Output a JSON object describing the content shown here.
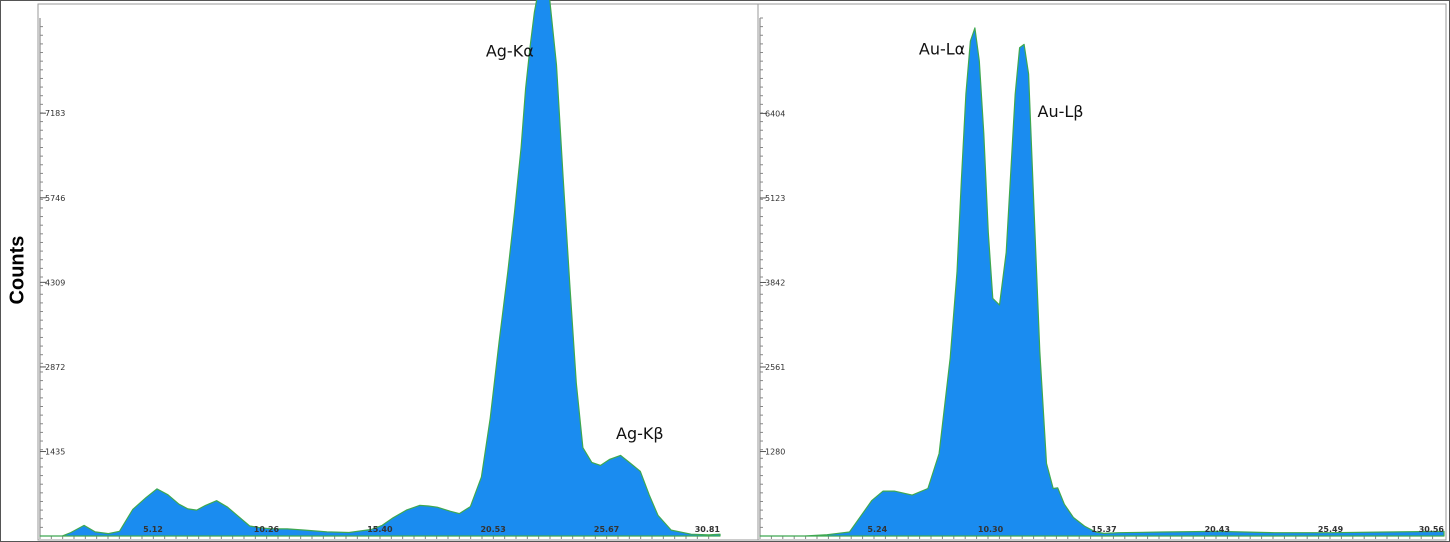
{
  "y_axis_label": "Counts",
  "chart_data": [
    {
      "type": "area",
      "title": "",
      "xlabel": "",
      "ylabel": "Counts",
      "xlim": [
        0,
        30.81
      ],
      "ylim": [
        0,
        8800
      ],
      "x_ticks": [
        "5.12",
        "10.26",
        "15.40",
        "20.53",
        "25.67",
        "30.81"
      ],
      "y_ticks": [
        "1435",
        "2872",
        "4309",
        "5746",
        "7183"
      ],
      "grid": false,
      "legend": "none",
      "fill_color": "#1a8cf0",
      "edge_color": "#3ea850",
      "series": [
        {
          "x": [
            0.0,
            1.0,
            1.4,
            2.0,
            2.5,
            3.1,
            3.6,
            4.2,
            4.8,
            5.3,
            5.8,
            6.3,
            6.7,
            7.1,
            7.5,
            8.0,
            8.5,
            9.0,
            9.5,
            10.0,
            10.5,
            11.2,
            12.0,
            13.0,
            14.0,
            15.0,
            15.5,
            16.0,
            16.6,
            17.2,
            17.6,
            18.0,
            18.6,
            19.0,
            19.5,
            20.0,
            20.4,
            20.8,
            21.2,
            21.5,
            21.8,
            22.0,
            22.2,
            22.4,
            22.6,
            22.8,
            23.1,
            23.4,
            23.7,
            24.0,
            24.3,
            24.6,
            25.0,
            25.4,
            25.8,
            26.3,
            26.7,
            27.2,
            27.6,
            28.0,
            28.6,
            29.5,
            30.3,
            30.81
          ],
          "values": [
            0,
            0,
            60,
            180,
            70,
            40,
            80,
            450,
            650,
            800,
            700,
            540,
            460,
            440,
            520,
            600,
            490,
            330,
            170,
            140,
            120,
            120,
            100,
            70,
            60,
            110,
            180,
            310,
            440,
            520,
            510,
            490,
            420,
            380,
            500,
            1000,
            2000,
            3300,
            4500,
            5500,
            6600,
            7600,
            8300,
            8900,
            9300,
            9400,
            9100,
            8000,
            6100,
            4300,
            2600,
            1500,
            1250,
            1200,
            1300,
            1370,
            1250,
            1100,
            700,
            350,
            100,
            30,
            20,
            30
          ]
        }
      ],
      "annotations": [
        {
          "text": "Ag-Kα",
          "x": 20.2,
          "y": 8150
        },
        {
          "text": "Ag-Kβ",
          "x": 26.1,
          "y": 1650
        }
      ]
    },
    {
      "type": "area",
      "title": "",
      "xlabel": "",
      "ylabel": "Counts",
      "xlim": [
        0,
        30.56
      ],
      "ylim": [
        0,
        7850
      ],
      "x_ticks": [
        "5.24",
        "10.30",
        "15.37",
        "20.43",
        "25.49",
        "30.56"
      ],
      "y_ticks": [
        "1280",
        "2561",
        "3842",
        "5123",
        "6404"
      ],
      "grid": false,
      "legend": "none",
      "fill_color": "#1a8cf0",
      "edge_color": "#3ea850",
      "series": [
        {
          "x": [
            0.0,
            2.0,
            3.0,
            4.0,
            4.5,
            5.0,
            5.5,
            6.0,
            6.8,
            7.5,
            8.0,
            8.5,
            8.8,
            9.0,
            9.2,
            9.4,
            9.6,
            9.8,
            10.0,
            10.2,
            10.4,
            10.7,
            11.0,
            11.2,
            11.4,
            11.6,
            11.8,
            12.0,
            12.2,
            12.5,
            12.8,
            13.1,
            13.3,
            13.6,
            14.0,
            14.5,
            15.0,
            15.37,
            16.0,
            18.0,
            20.43,
            23.0,
            25.49,
            28.0,
            30.56
          ],
          "values": [
            0,
            0,
            20,
            60,
            300,
            540,
            680,
            680,
            620,
            720,
            1250,
            2700,
            4000,
            5400,
            6700,
            7500,
            7700,
            7200,
            6100,
            4600,
            3600,
            3500,
            4300,
            5500,
            6700,
            7400,
            7450,
            7000,
            5300,
            2800,
            1100,
            720,
            730,
            480,
            280,
            150,
            60,
            40,
            50,
            60,
            70,
            50,
            50,
            60,
            70
          ]
        }
      ],
      "annotations": [
        {
          "text": "Au-Lα",
          "x": 7.1,
          "y": 7300
        },
        {
          "text": "Au-Lβ",
          "x": 12.4,
          "y": 6350
        }
      ]
    }
  ]
}
